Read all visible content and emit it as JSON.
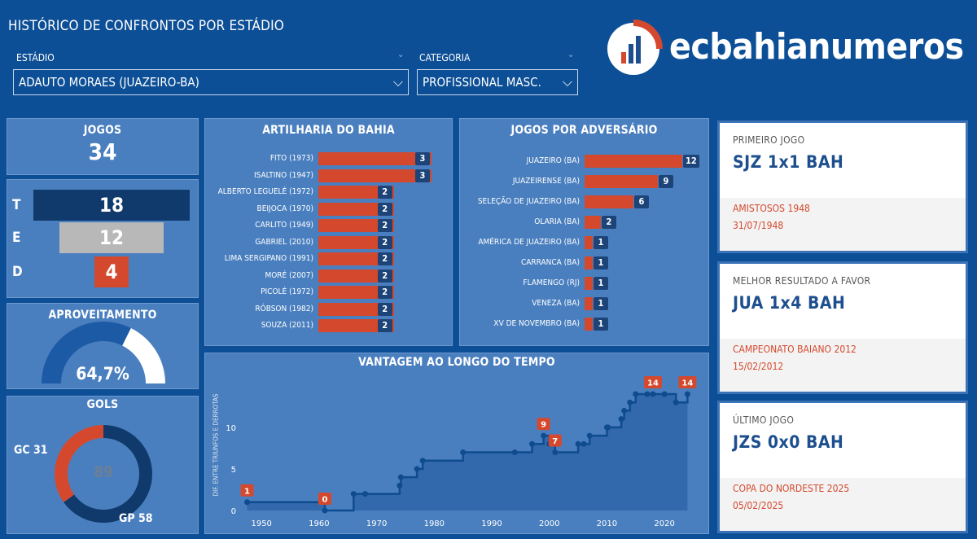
{
  "header": {
    "title": "HISTÓRICO DE CONFRONTOS POR ESTÁDIO",
    "brand": "ecbahianumeros"
  },
  "filters": {
    "stadium_label": "ESTÁDIO",
    "stadium_value": "ADAUTO MORAES (JUAZEIRO-BA)",
    "category_label": "CATEGORIA",
    "category_value": "PROFISSIONAL MASC."
  },
  "jogos": {
    "title": "JOGOS",
    "value": "34"
  },
  "results": {
    "items": [
      {
        "letter": "T",
        "value": 18,
        "color": "#103a6b",
        "text": "#ffffff"
      },
      {
        "letter": "E",
        "value": 12,
        "color": "#b8b8b8",
        "text": "#ffffff"
      },
      {
        "letter": "D",
        "value": 4,
        "color": "#d4492e",
        "text": "#ffffff"
      }
    ]
  },
  "aproveitamento": {
    "title": "APROVEITAMENTO",
    "value": "64,7%",
    "fraction": 0.647
  },
  "gols": {
    "title": "GOLS",
    "total": "89",
    "gc_label": "GC 31",
    "gp_label": "GP 58",
    "gc": 31,
    "gp": 58
  },
  "artilharia": {
    "title": "ARTILHARIA DO BAHIA",
    "max": 3,
    "items": [
      {
        "name": "FITO (1973)",
        "value": 3
      },
      {
        "name": "ISALTINO (1947)",
        "value": 3
      },
      {
        "name": "ALBERTO LEGUELÉ (1972)",
        "value": 2
      },
      {
        "name": "BEIJOCA (1970)",
        "value": 2
      },
      {
        "name": "CARLITO (1949)",
        "value": 2
      },
      {
        "name": "GABRIEL (2010)",
        "value": 2
      },
      {
        "name": "LIMA SERGIPANO (1991)",
        "value": 2
      },
      {
        "name": "MORÉ (2007)",
        "value": 2
      },
      {
        "name": "PICOLÉ (1972)",
        "value": 2
      },
      {
        "name": "RÓBSON (1982)",
        "value": 2
      },
      {
        "name": "SOUZA (2011)",
        "value": 2
      }
    ]
  },
  "adversarios": {
    "title": "JOGOS POR ADVERSÁRIO",
    "max": 12,
    "items": [
      {
        "name": "JUAZEIRO (BA)",
        "value": 12
      },
      {
        "name": "JUAZEIRENSE (BA)",
        "value": 9
      },
      {
        "name": "SELEÇÃO DE JUAZEIRO (BA)",
        "value": 6
      },
      {
        "name": "OLARIA (BA)",
        "value": 2
      },
      {
        "name": "AMÉRICA DE JUAZEIRO (BA)",
        "value": 1
      },
      {
        "name": "CARRANCA (BA)",
        "value": 1
      },
      {
        "name": "FLAMENGO (RJ)",
        "value": 1
      },
      {
        "name": "VENEZA (BA)",
        "value": 1
      },
      {
        "name": "XV DE NOVEMBRO (BA)",
        "value": 1
      }
    ]
  },
  "chart_data": {
    "type": "line",
    "title": "VANTAGEM AO LONGO DO TEMPO",
    "ylabel": "DIF. ENTRE TRIUNFOS E DERROTAS",
    "xlim": [
      1947,
      2025.5
    ],
    "ylim": [
      0,
      14
    ],
    "xticks": [
      1950,
      1960,
      1970,
      1980,
      1990,
      2000,
      2010,
      2020
    ],
    "yticks": [
      0,
      5,
      10
    ],
    "x": [
      1947.5,
      1961,
      1966,
      1968,
      1974,
      1974.2,
      1977,
      1978,
      1985,
      1994,
      1997,
      1999,
      2000,
      2001,
      2005,
      2006,
      2007,
      2010,
      2010.2,
      2012.5,
      2013,
      2014,
      2015,
      2017,
      2018,
      2020,
      2022,
      2024
    ],
    "y": [
      1,
      0,
      2,
      2,
      3,
      4,
      5,
      6,
      7,
      7,
      8,
      9,
      8,
      7,
      8,
      8,
      9,
      10,
      10,
      11,
      12,
      13,
      14,
      14,
      14,
      14,
      13,
      14
    ],
    "labels": [
      {
        "x": 1947.5,
        "y": 1,
        "text": "1"
      },
      {
        "x": 1961,
        "y": 0,
        "text": "0"
      },
      {
        "x": 1999,
        "y": 9,
        "text": "9"
      },
      {
        "x": 2001,
        "y": 7,
        "text": "7"
      },
      {
        "x": 2018,
        "y": 14,
        "text": "14"
      },
      {
        "x": 2024,
        "y": 14,
        "text": "14"
      }
    ]
  },
  "cards": [
    {
      "label": "PRIMEIRO JOGO",
      "score": "SJZ 1x1 BAH",
      "competition": "AMISTOSOS 1948",
      "date": "31/07/1948"
    },
    {
      "label": "MELHOR RESULTADO A FAVOR",
      "score": "JUA 1x4 BAH",
      "competition": "CAMPEONATO BAIANO 2012",
      "date": "15/02/2012"
    },
    {
      "label": "ÚLTIMO JOGO",
      "score": "JZS 0x0 BAH",
      "competition": "COPA DO NORDESTE 2025",
      "date": "05/02/2025"
    }
  ]
}
